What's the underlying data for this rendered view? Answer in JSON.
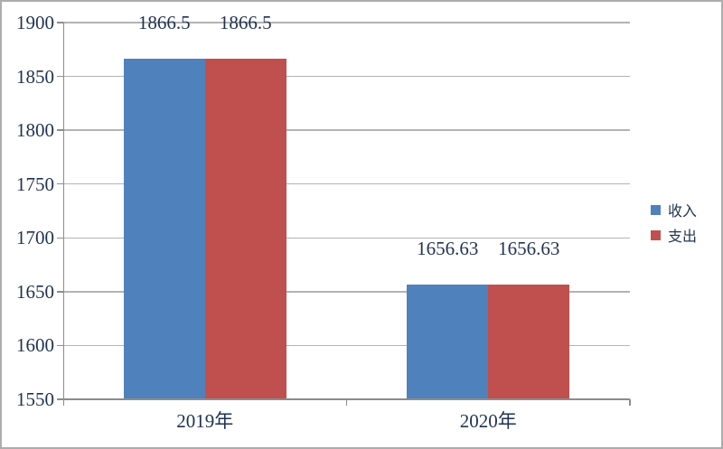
{
  "chart_data": {
    "type": "bar",
    "categories": [
      "2019年",
      "2020年"
    ],
    "series": [
      {
        "name": "收入",
        "color": "#4F81BD",
        "values": [
          1866.5,
          1656.63
        ],
        "labels": [
          "1866.5",
          "1656.63"
        ]
      },
      {
        "name": "支出",
        "color": "#C0504D",
        "values": [
          1866.5,
          1656.63
        ],
        "labels": [
          "1866.5",
          "1656.63"
        ]
      }
    ],
    "ylim": [
      1550,
      1900
    ],
    "ytick_step": 50,
    "ytick_labels": [
      "1550",
      "1600",
      "1650",
      "1700",
      "1750",
      "1800",
      "1850",
      "1900"
    ],
    "grid": true,
    "legend_position": "right"
  },
  "colors": {
    "income_bar": "#4F81BD",
    "expense_bar": "#C0504D",
    "text": "#1f3251",
    "gridline": "#b3b3b3",
    "axis": "#8c8c8c",
    "background": "#ffffff",
    "frame_border": "#adadad"
  }
}
